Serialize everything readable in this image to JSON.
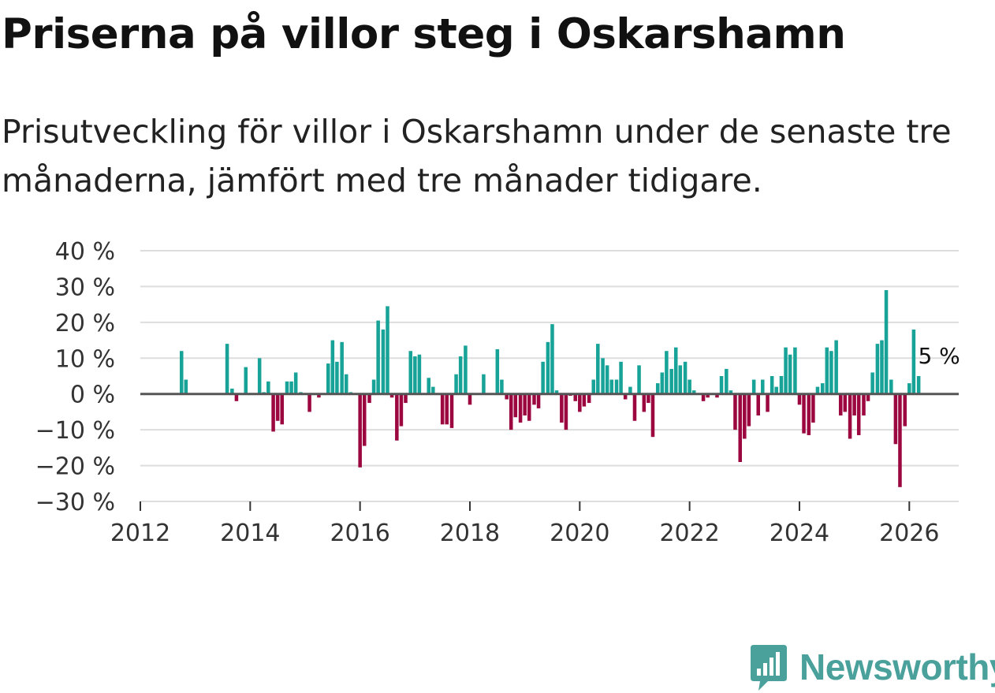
{
  "title": "Priserna på villor steg i Oskarshamn",
  "subtitle": "Prisutveckling för villor i Oskarshamn under de senaste tre månaderna, jämfört med tre månader tidigare.",
  "brand": {
    "name": "Newsworthy",
    "icon": "newsworthy-logo-icon",
    "color": "#4aa19b"
  },
  "colors": {
    "positive": "#18a398",
    "negative": "#9c0740",
    "zero_line": "#555555",
    "grid": "#dddddd"
  },
  "chart_data": {
    "type": "bar",
    "title": "Priserna på villor steg i Oskarshamn",
    "xlabel": "",
    "ylabel": "",
    "xlim": [
      2012,
      2026.9
    ],
    "ylim": [
      -30,
      40
    ],
    "y_ticks": [
      -30,
      -20,
      -10,
      0,
      10,
      20,
      30,
      40
    ],
    "y_tick_labels": [
      "−30 %",
      "−20 %",
      "−10 %",
      "0 %",
      "10 %",
      "20 %",
      "30 %",
      "40 %"
    ],
    "x_ticks": [
      2012,
      2014,
      2016,
      2018,
      2020,
      2022,
      2024,
      2026
    ],
    "x_tick_labels": [
      "2012",
      "2014",
      "2016",
      "2018",
      "2020",
      "2022",
      "2024",
      "2026"
    ],
    "grid": true,
    "annotation": {
      "text": "5 %",
      "x": 2026.17,
      "y": 5
    },
    "series": [
      {
        "name": "Prisutveckling",
        "x": [
          2012.75,
          2012.83,
          2013.58,
          2013.67,
          2013.75,
          2013.92,
          2014.17,
          2014.25,
          2014.33,
          2014.42,
          2014.5,
          2014.58,
          2014.67,
          2014.75,
          2014.83,
          2014.92,
          2015.08,
          2015.25,
          2015.42,
          2015.5,
          2015.58,
          2015.67,
          2015.75,
          2015.83,
          2016.0,
          2016.08,
          2016.17,
          2016.25,
          2016.33,
          2016.42,
          2016.5,
          2016.58,
          2016.67,
          2016.75,
          2016.83,
          2016.92,
          2017.0,
          2017.08,
          2017.25,
          2017.33,
          2017.5,
          2017.58,
          2017.67,
          2017.75,
          2017.83,
          2017.92,
          2018.0,
          2018.25,
          2018.5,
          2018.58,
          2018.67,
          2018.75,
          2018.83,
          2018.92,
          2019.0,
          2019.08,
          2019.17,
          2019.25,
          2019.33,
          2019.42,
          2019.5,
          2019.58,
          2019.67,
          2019.75,
          2019.83,
          2019.92,
          2020.0,
          2020.08,
          2020.17,
          2020.25,
          2020.33,
          2020.42,
          2020.5,
          2020.58,
          2020.67,
          2020.75,
          2020.83,
          2020.92,
          2021.0,
          2021.08,
          2021.17,
          2021.25,
          2021.33,
          2021.42,
          2021.5,
          2021.58,
          2021.67,
          2021.75,
          2021.83,
          2021.92,
          2022.0,
          2022.08,
          2022.25,
          2022.33,
          2022.5,
          2022.58,
          2022.67,
          2022.75,
          2022.83,
          2022.92,
          2023.0,
          2023.08,
          2023.17,
          2023.25,
          2023.33,
          2023.42,
          2023.5,
          2023.58,
          2023.67,
          2023.75,
          2023.83,
          2023.92,
          2024.0,
          2024.08,
          2024.17,
          2024.25,
          2024.33,
          2024.42,
          2024.5,
          2024.58,
          2024.67,
          2024.75,
          2024.83,
          2024.92,
          2025.0,
          2025.08,
          2025.17,
          2025.25,
          2025.33,
          2025.42,
          2025.5,
          2025.58,
          2025.67,
          2025.75,
          2025.83,
          2025.92,
          2026.0,
          2026.08,
          2026.17
        ],
        "values": [
          12,
          4,
          14,
          1.5,
          -2,
          7.5,
          10,
          0.5,
          3.5,
          -10.5,
          -7.5,
          -8.5,
          3.5,
          3.5,
          6,
          0.5,
          -5,
          -1,
          8.5,
          15,
          9,
          14.5,
          5.5,
          0.5,
          -20.5,
          -14.5,
          -2.5,
          4,
          20.5,
          18,
          24.5,
          -1,
          -13,
          -9,
          -2.5,
          12,
          10.5,
          11,
          4.5,
          2,
          -8.5,
          -8.5,
          -9.5,
          5.5,
          10.5,
          13.5,
          -3,
          5.5,
          12.5,
          4,
          -1.5,
          -10,
          -6.5,
          -8,
          -6,
          -7.5,
          -3,
          -4,
          9,
          14.5,
          19.5,
          1,
          -8,
          -10,
          -0.5,
          -2,
          -5,
          -3.5,
          -2.5,
          4,
          14,
          10,
          8,
          4,
          4,
          9,
          -1.5,
          2,
          -7.5,
          8,
          -5,
          -2.5,
          -12,
          3,
          6,
          12,
          7,
          13,
          8,
          9,
          4,
          1,
          -2,
          -1,
          -1,
          5,
          7,
          1,
          -10,
          -19,
          -12.5,
          -9,
          4,
          -6,
          4,
          -5,
          5,
          2,
          5,
          13,
          11,
          13,
          -3,
          -11,
          -11.5,
          -8,
          2,
          3,
          13,
          12,
          15,
          -6,
          -5,
          -12.5,
          -6,
          -11.5,
          -6,
          -2,
          6,
          14,
          15,
          29,
          4,
          -14,
          -26,
          -9,
          3,
          18,
          5
        ]
      }
    ]
  }
}
